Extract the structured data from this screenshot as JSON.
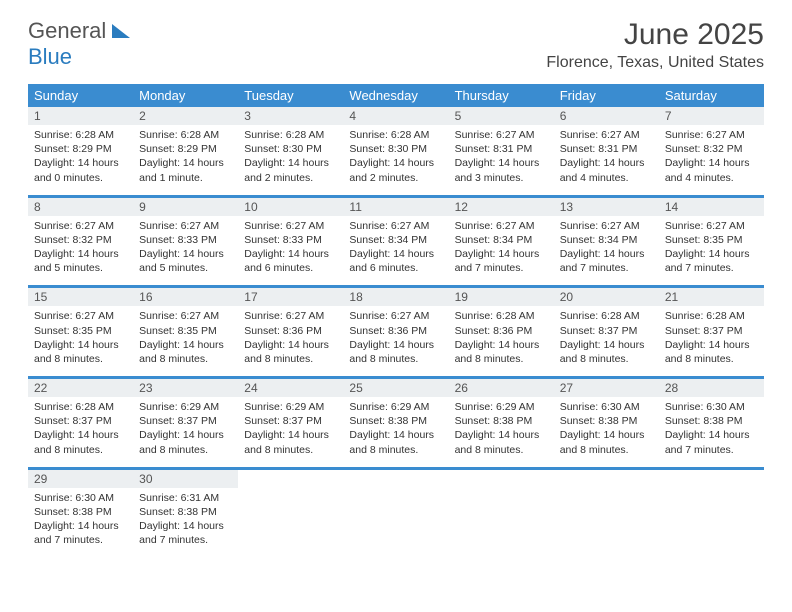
{
  "brand": {
    "word1": "General",
    "word2": "Blue"
  },
  "title": "June 2025",
  "location": "Florence, Texas, United States",
  "colors": {
    "header_bg": "#3a8cd0",
    "header_fg": "#ffffff",
    "daynum_bg": "#eceff1",
    "text": "#333333",
    "brand_blue": "#2a7cbf"
  },
  "day_headers": [
    "Sunday",
    "Monday",
    "Tuesday",
    "Wednesday",
    "Thursday",
    "Friday",
    "Saturday"
  ],
  "weeks": [
    [
      {
        "n": "1",
        "r": "Sunrise: 6:28 AM",
        "s": "Sunset: 8:29 PM",
        "d1": "Daylight: 14 hours",
        "d2": "and 0 minutes."
      },
      {
        "n": "2",
        "r": "Sunrise: 6:28 AM",
        "s": "Sunset: 8:29 PM",
        "d1": "Daylight: 14 hours",
        "d2": "and 1 minute."
      },
      {
        "n": "3",
        "r": "Sunrise: 6:28 AM",
        "s": "Sunset: 8:30 PM",
        "d1": "Daylight: 14 hours",
        "d2": "and 2 minutes."
      },
      {
        "n": "4",
        "r": "Sunrise: 6:28 AM",
        "s": "Sunset: 8:30 PM",
        "d1": "Daylight: 14 hours",
        "d2": "and 2 minutes."
      },
      {
        "n": "5",
        "r": "Sunrise: 6:27 AM",
        "s": "Sunset: 8:31 PM",
        "d1": "Daylight: 14 hours",
        "d2": "and 3 minutes."
      },
      {
        "n": "6",
        "r": "Sunrise: 6:27 AM",
        "s": "Sunset: 8:31 PM",
        "d1": "Daylight: 14 hours",
        "d2": "and 4 minutes."
      },
      {
        "n": "7",
        "r": "Sunrise: 6:27 AM",
        "s": "Sunset: 8:32 PM",
        "d1": "Daylight: 14 hours",
        "d2": "and 4 minutes."
      }
    ],
    [
      {
        "n": "8",
        "r": "Sunrise: 6:27 AM",
        "s": "Sunset: 8:32 PM",
        "d1": "Daylight: 14 hours",
        "d2": "and 5 minutes."
      },
      {
        "n": "9",
        "r": "Sunrise: 6:27 AM",
        "s": "Sunset: 8:33 PM",
        "d1": "Daylight: 14 hours",
        "d2": "and 5 minutes."
      },
      {
        "n": "10",
        "r": "Sunrise: 6:27 AM",
        "s": "Sunset: 8:33 PM",
        "d1": "Daylight: 14 hours",
        "d2": "and 6 minutes."
      },
      {
        "n": "11",
        "r": "Sunrise: 6:27 AM",
        "s": "Sunset: 8:34 PM",
        "d1": "Daylight: 14 hours",
        "d2": "and 6 minutes."
      },
      {
        "n": "12",
        "r": "Sunrise: 6:27 AM",
        "s": "Sunset: 8:34 PM",
        "d1": "Daylight: 14 hours",
        "d2": "and 7 minutes."
      },
      {
        "n": "13",
        "r": "Sunrise: 6:27 AM",
        "s": "Sunset: 8:34 PM",
        "d1": "Daylight: 14 hours",
        "d2": "and 7 minutes."
      },
      {
        "n": "14",
        "r": "Sunrise: 6:27 AM",
        "s": "Sunset: 8:35 PM",
        "d1": "Daylight: 14 hours",
        "d2": "and 7 minutes."
      }
    ],
    [
      {
        "n": "15",
        "r": "Sunrise: 6:27 AM",
        "s": "Sunset: 8:35 PM",
        "d1": "Daylight: 14 hours",
        "d2": "and 8 minutes."
      },
      {
        "n": "16",
        "r": "Sunrise: 6:27 AM",
        "s": "Sunset: 8:35 PM",
        "d1": "Daylight: 14 hours",
        "d2": "and 8 minutes."
      },
      {
        "n": "17",
        "r": "Sunrise: 6:27 AM",
        "s": "Sunset: 8:36 PM",
        "d1": "Daylight: 14 hours",
        "d2": "and 8 minutes."
      },
      {
        "n": "18",
        "r": "Sunrise: 6:27 AM",
        "s": "Sunset: 8:36 PM",
        "d1": "Daylight: 14 hours",
        "d2": "and 8 minutes."
      },
      {
        "n": "19",
        "r": "Sunrise: 6:28 AM",
        "s": "Sunset: 8:36 PM",
        "d1": "Daylight: 14 hours",
        "d2": "and 8 minutes."
      },
      {
        "n": "20",
        "r": "Sunrise: 6:28 AM",
        "s": "Sunset: 8:37 PM",
        "d1": "Daylight: 14 hours",
        "d2": "and 8 minutes."
      },
      {
        "n": "21",
        "r": "Sunrise: 6:28 AM",
        "s": "Sunset: 8:37 PM",
        "d1": "Daylight: 14 hours",
        "d2": "and 8 minutes."
      }
    ],
    [
      {
        "n": "22",
        "r": "Sunrise: 6:28 AM",
        "s": "Sunset: 8:37 PM",
        "d1": "Daylight: 14 hours",
        "d2": "and 8 minutes."
      },
      {
        "n": "23",
        "r": "Sunrise: 6:29 AM",
        "s": "Sunset: 8:37 PM",
        "d1": "Daylight: 14 hours",
        "d2": "and 8 minutes."
      },
      {
        "n": "24",
        "r": "Sunrise: 6:29 AM",
        "s": "Sunset: 8:37 PM",
        "d1": "Daylight: 14 hours",
        "d2": "and 8 minutes."
      },
      {
        "n": "25",
        "r": "Sunrise: 6:29 AM",
        "s": "Sunset: 8:38 PM",
        "d1": "Daylight: 14 hours",
        "d2": "and 8 minutes."
      },
      {
        "n": "26",
        "r": "Sunrise: 6:29 AM",
        "s": "Sunset: 8:38 PM",
        "d1": "Daylight: 14 hours",
        "d2": "and 8 minutes."
      },
      {
        "n": "27",
        "r": "Sunrise: 6:30 AM",
        "s": "Sunset: 8:38 PM",
        "d1": "Daylight: 14 hours",
        "d2": "and 8 minutes."
      },
      {
        "n": "28",
        "r": "Sunrise: 6:30 AM",
        "s": "Sunset: 8:38 PM",
        "d1": "Daylight: 14 hours",
        "d2": "and 7 minutes."
      }
    ],
    [
      {
        "n": "29",
        "r": "Sunrise: 6:30 AM",
        "s": "Sunset: 8:38 PM",
        "d1": "Daylight: 14 hours",
        "d2": "and 7 minutes."
      },
      {
        "n": "30",
        "r": "Sunrise: 6:31 AM",
        "s": "Sunset: 8:38 PM",
        "d1": "Daylight: 14 hours",
        "d2": "and 7 minutes."
      },
      null,
      null,
      null,
      null,
      null
    ]
  ]
}
